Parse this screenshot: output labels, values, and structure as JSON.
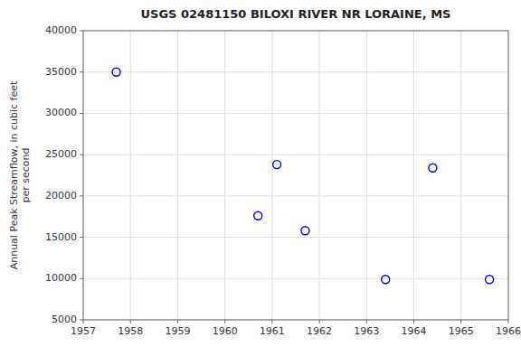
{
  "chart_data": {
    "type": "scatter",
    "title": "USGS 02481150 BILOXI RIVER NR LORAINE, MS",
    "ylabel": "Annual Peak Streamflow, in cubic feet\nper second",
    "x": [
      1957.7,
      1960.7,
      1961.1,
      1961.7,
      1963.4,
      1964.4,
      1965.6
    ],
    "values": [
      35000,
      17600,
      23800,
      15800,
      9900,
      23400,
      9900
    ],
    "xlim": [
      1957,
      1966
    ],
    "ylim": [
      5000,
      40000
    ],
    "xticks": [
      1957,
      1958,
      1959,
      1960,
      1961,
      1962,
      1963,
      1964,
      1965,
      1966
    ],
    "yticks": [
      5000,
      10000,
      15000,
      20000,
      25000,
      30000,
      35000,
      40000
    ],
    "color": "#0000cc",
    "grid": true
  }
}
